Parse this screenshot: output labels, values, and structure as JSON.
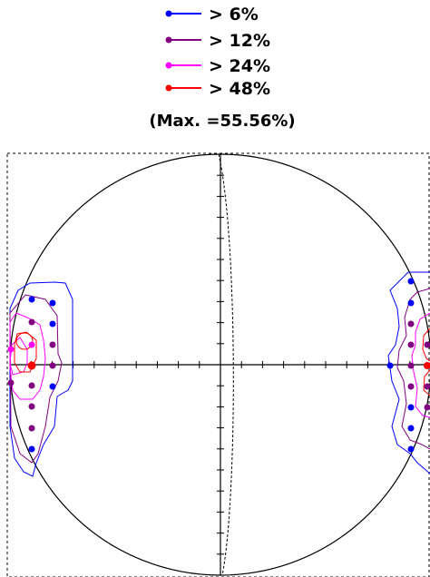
{
  "legend": [
    {
      "label": "> 6%",
      "color": "#0000ff"
    },
    {
      "label": "> 12%",
      "color": "#800080"
    },
    {
      "label": "> 24%",
      "color": "#ff00ff"
    },
    {
      "label": "> 48%",
      "color": "#ff0000"
    }
  ],
  "max_label": "(Max. =55.56%)",
  "colors": {
    "frame": "#000000",
    "contour_6": "#0000ff",
    "contour_12": "#800080",
    "contour_24": "#ff00ff",
    "contour_48": "#ff0000"
  },
  "plot_type": "stereonet contour plot",
  "left_cluster": {
    "points": [
      {
        "level": "6%",
        "count": 5
      },
      {
        "level": "12%",
        "count": 7
      },
      {
        "level": "24%",
        "count": 3
      },
      {
        "level": "48%",
        "count": 1
      }
    ]
  },
  "right_cluster": {
    "points": [
      {
        "level": "6%",
        "count": 6
      },
      {
        "level": "12%",
        "count": 7
      },
      {
        "level": "48%",
        "count": 1
      }
    ]
  }
}
